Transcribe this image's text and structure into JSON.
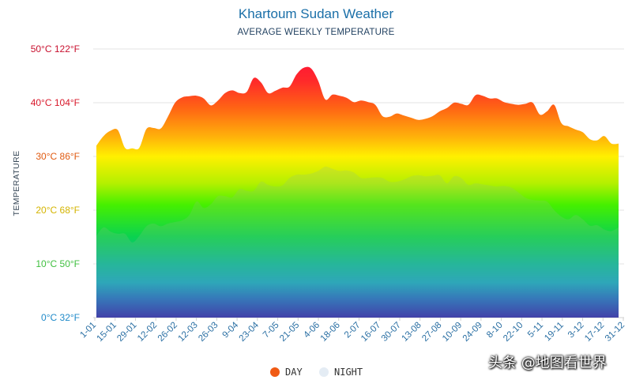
{
  "title": "Khartoum Sudan Weather",
  "subtitle": "AVERAGE WEEKLY TEMPERATURE",
  "watermark": "头条 @地图看世界",
  "chart_data": {
    "type": "area",
    "title": "Khartoum Sudan Weather",
    "subtitle": "AVERAGE WEEKLY TEMPERATURE",
    "ylabel": "TEMPERATURE",
    "xlabel": "",
    "ylim": [
      0,
      50
    ],
    "grid": true,
    "legend_position": "bottom",
    "y_ticks": [
      {
        "value": 0,
        "label": "0°C 32°F",
        "color": "#1f8ac9"
      },
      {
        "value": 10,
        "label": "10°C 50°F",
        "color": "#3fbf3f"
      },
      {
        "value": 20,
        "label": "20°C 68°F",
        "color": "#d4b400"
      },
      {
        "value": 30,
        "label": "30°C 86°F",
        "color": "#e05a10"
      },
      {
        "value": 40,
        "label": "40°C 104°F",
        "color": "#d8182a"
      },
      {
        "value": 50,
        "label": "50°C 122°F",
        "color": "#c8102e"
      }
    ],
    "x_tick_labels": [
      "1-01",
      "15-01",
      "29-01",
      "12-02",
      "26-02",
      "12-03",
      "26-03",
      "9-04",
      "23-04",
      "7-05",
      "21-05",
      "4-06",
      "18-06",
      "2-07",
      "16-07",
      "30-07",
      "13-08",
      "27-08",
      "10-09",
      "24-09",
      "8-10",
      "22-10",
      "5-11",
      "19-11",
      "3-12",
      "17-12",
      "31-12"
    ],
    "series": [
      {
        "name": "DAY",
        "color": "#f05a14",
        "values": [
          32.0,
          33.8,
          34.8,
          34.9,
          31.6,
          31.5,
          31.6,
          35.1,
          35.3,
          35.2,
          37.4,
          40.0,
          41.0,
          41.2,
          41.3,
          40.8,
          39.5,
          40.4,
          41.8,
          42.3,
          41.8,
          42.0,
          44.6,
          43.8,
          41.8,
          42.2,
          42.8,
          43.0,
          45.3,
          46.5,
          46.4,
          44.1,
          40.6,
          41.5,
          41.3,
          40.9,
          40.1,
          40.4,
          40.1,
          39.6,
          37.5,
          37.4,
          38.0,
          37.6,
          37.2,
          36.8,
          37.0,
          37.5,
          38.4,
          39.0,
          40.0,
          39.8,
          39.6,
          41.4,
          41.3,
          40.8,
          40.8,
          40.1,
          39.8,
          39.6,
          39.8,
          40.0,
          37.8,
          38.4,
          39.6,
          36.2,
          35.6,
          35.0,
          34.5,
          33.2,
          33.0,
          33.8,
          32.4,
          32.4
        ]
      },
      {
        "name": "NIGHT",
        "color": "#e4ecf4",
        "values": [
          15.2,
          16.8,
          16.0,
          15.6,
          15.6,
          14.0,
          15.2,
          17.0,
          17.5,
          17.0,
          17.5,
          17.8,
          18.1,
          19.1,
          21.6,
          20.4,
          21.1,
          22.6,
          22.6,
          22.4,
          23.9,
          23.6,
          23.6,
          25.3,
          24.7,
          24.4,
          24.6,
          26.0,
          26.6,
          26.6,
          26.8,
          27.3,
          28.1,
          27.7,
          27.3,
          27.4,
          27.0,
          26.0,
          26.0,
          26.1,
          26.0,
          25.3,
          25.3,
          25.7,
          26.3,
          26.5,
          26.3,
          26.4,
          26.5,
          25.0,
          26.3,
          26.0,
          24.7,
          25.0,
          24.8,
          24.6,
          24.4,
          24.5,
          24.2,
          23.3,
          22.3,
          21.9,
          21.8,
          21.6,
          20.0,
          18.8,
          18.3,
          19.1,
          18.3,
          17.1,
          17.2,
          16.4,
          16.1,
          16.8
        ]
      }
    ]
  }
}
